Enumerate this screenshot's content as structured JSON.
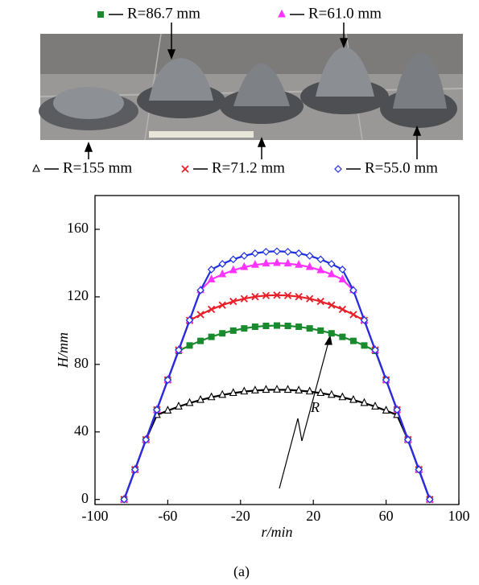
{
  "chart_data": {
    "type": "line",
    "x_label": "r/min",
    "y_label": "H/mm",
    "caption": "(a)",
    "annotation": "R",
    "x": [
      -84,
      -78,
      -72,
      -66,
      -60,
      -54,
      -48,
      -42,
      -36,
      -30,
      -24,
      -18,
      -12,
      -6,
      0,
      6,
      12,
      18,
      24,
      30,
      36,
      42,
      48,
      54,
      60,
      66,
      72,
      78,
      84
    ],
    "xlim": [
      -100,
      100
    ],
    "xticks": [
      -100,
      -60,
      -20,
      20,
      60,
      100
    ],
    "ylim": [
      -3,
      180
    ],
    "yticks": [
      0,
      40,
      80,
      120,
      160
    ],
    "series": [
      {
        "name": "R=86.7 mm",
        "color": "#1a8a2e",
        "marker": "square",
        "values": [
          0,
          17.7,
          35.4,
          53.1,
          70.8,
          88.0,
          91.2,
          93.9,
          96.3,
          98.4,
          100.0,
          101.3,
          102.3,
          102.8,
          103,
          102.8,
          102.3,
          101.3,
          100.0,
          98.4,
          96.3,
          93.9,
          91.2,
          88.0,
          70.8,
          53.1,
          35.4,
          17.7,
          0
        ]
      },
      {
        "name": "R=61.0 mm",
        "color": "#ff33ff",
        "marker": "triangle",
        "values": [
          0,
          17.7,
          35.4,
          53.1,
          70.8,
          88.5,
          106.2,
          123.9,
          130.3,
          133.3,
          135.7,
          137.6,
          138.9,
          139.7,
          140,
          139.7,
          138.9,
          137.6,
          135.7,
          133.3,
          130.3,
          123.9,
          106.2,
          88.5,
          70.8,
          53.1,
          35.4,
          17.7,
          0
        ]
      },
      {
        "name": "R=155 mm",
        "color": "#000000",
        "marker": "triangle-open",
        "values": [
          0,
          17.7,
          35.4,
          50.0,
          52.6,
          55.0,
          57.1,
          58.9,
          60.5,
          61.9,
          63.0,
          63.9,
          64.5,
          64.9,
          65,
          64.9,
          64.5,
          63.9,
          63.0,
          61.9,
          60.5,
          58.9,
          57.1,
          55.0,
          52.6,
          50.0,
          35.4,
          17.7,
          0
        ]
      },
      {
        "name": "R=71.2 mm",
        "color": "#e8202a",
        "marker": "x",
        "values": [
          0,
          17.7,
          35.4,
          53.1,
          70.8,
          88.5,
          106.0,
          109.5,
          112.6,
          115.1,
          117.3,
          118.9,
          120.1,
          120.8,
          121,
          120.8,
          120.1,
          118.9,
          117.3,
          115.1,
          112.6,
          109.5,
          106.0,
          88.5,
          70.8,
          53.1,
          35.4,
          17.7,
          0
        ]
      },
      {
        "name": "R=55.0 mm",
        "color": "#1f2fe0",
        "marker": "diamond-open",
        "values": [
          0,
          17.7,
          35.4,
          53.1,
          70.8,
          88.5,
          106.2,
          123.9,
          136.2,
          139.5,
          142.2,
          144.3,
          145.8,
          146.7,
          147,
          146.7,
          145.8,
          144.3,
          142.2,
          139.5,
          136.2,
          123.9,
          106.2,
          88.5,
          70.8,
          53.1,
          35.4,
          17.7,
          0
        ]
      }
    ]
  }
}
